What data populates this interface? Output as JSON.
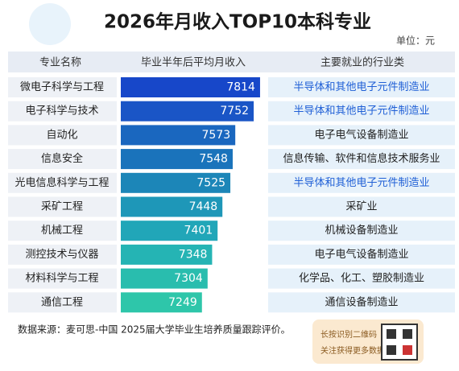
{
  "chart_data": {
    "type": "bar",
    "orientation": "horizontal",
    "title": "2026年月收入TOP10本科专业",
    "unit": "单位：元",
    "headers": [
      "专业名称",
      "毕业半年后平均月收入",
      "主要就业的行业类"
    ],
    "categories": [
      "微电子科学与工程",
      "电子科学与技术",
      "自动化",
      "信息安全",
      "光电信息科学与工程",
      "采矿工程",
      "机械工程",
      "测控技术与仪器",
      "材料科学与工程",
      "通信工程"
    ],
    "values": [
      7814,
      7752,
      7573,
      7548,
      7525,
      7448,
      7401,
      7348,
      7304,
      7249
    ],
    "colors": [
      "#1747c9",
      "#1a55c6",
      "#1a67bf",
      "#1a73bb",
      "#1c86b8",
      "#1e97b8",
      "#21a6b8",
      "#25b4b4",
      "#29bdae",
      "#2ec6aa"
    ],
    "xlim": [
      6460,
      7830
    ],
    "industries": [
      "半导体和其他电子元件制造业",
      "半导体和其他电子元件制造业",
      "电子电气设备制造业",
      "信息传输、软件和信息技术服务业",
      "半导体和其他电子元件制造业",
      "采矿业",
      "机械设备制造业",
      "电子电气设备制造业",
      "化学品、化工、塑胶制造业",
      "通信设备制造业"
    ],
    "industry_colors": [
      "#1f5fd6",
      "#1f5fd6",
      "#222",
      "#222",
      "#1f5fd6",
      "#222",
      "#222",
      "#222",
      "#222",
      "#222"
    ],
    "source": "数据来源：麦可思-中国 2025届大学毕业生培养质量跟踪评价。",
    "qr_text": [
      "长按识别二维码",
      "关注获得更多数据"
    ]
  }
}
